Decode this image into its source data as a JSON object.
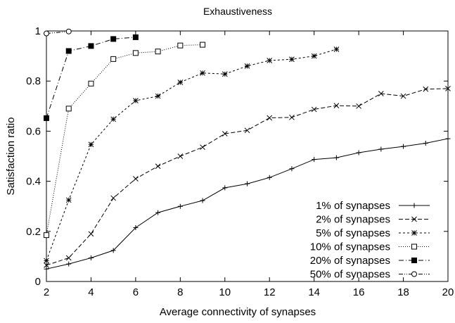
{
  "chart_data": {
    "type": "line",
    "title": "Exhaustiveness",
    "xlabel": "Average connectivity of synapses",
    "ylabel": "Satisfaction ratio",
    "xlim": [
      2,
      20
    ],
    "ylim": [
      0,
      1
    ],
    "x_ticks": [
      2,
      4,
      6,
      8,
      10,
      12,
      14,
      16,
      18,
      20
    ],
    "x_tick_labels": [
      "2",
      "4",
      "6",
      "8",
      "10",
      "12",
      "14",
      "16",
      "18",
      "20"
    ],
    "y_ticks": [
      0,
      0.2,
      0.4,
      0.6,
      0.8,
      1
    ],
    "y_tick_labels": [
      "0",
      "0.2",
      "0.4",
      "0.6",
      "0.8",
      "1"
    ],
    "grid": false,
    "legend_position": "bottom-right",
    "series": [
      {
        "name": "1% of synapses",
        "dash": "solid",
        "marker": "plus",
        "x": [
          2,
          3,
          4,
          5,
          6,
          7,
          8,
          9,
          10,
          11,
          12,
          13,
          14,
          15,
          16,
          17,
          18,
          19,
          20
        ],
        "values": [
          0.05,
          0.07,
          0.094,
          0.124,
          0.215,
          0.275,
          0.3,
          0.323,
          0.374,
          0.39,
          0.415,
          0.45,
          0.487,
          0.494,
          0.514,
          0.528,
          0.539,
          0.552,
          0.57
        ]
      },
      {
        "name": "2% of synapses",
        "dash": "dashed",
        "marker": "cross",
        "x": [
          2,
          3,
          4,
          5,
          6,
          7,
          8,
          9,
          10,
          11,
          12,
          13,
          14,
          15,
          16,
          17,
          18,
          19,
          20
        ],
        "values": [
          0.065,
          0.094,
          0.19,
          0.333,
          0.41,
          0.46,
          0.5,
          0.536,
          0.59,
          0.603,
          0.653,
          0.655,
          0.687,
          0.702,
          0.7,
          0.75,
          0.74,
          0.768,
          0.77
        ]
      },
      {
        "name": "5% of synapses",
        "dash": "short-dashed",
        "marker": "star",
        "x": [
          2,
          3,
          4,
          5,
          6,
          7,
          8,
          9,
          10,
          11,
          12,
          13,
          14,
          15
        ],
        "values": [
          0.083,
          0.325,
          0.547,
          0.648,
          0.722,
          0.74,
          0.795,
          0.832,
          0.828,
          0.86,
          0.882,
          0.887,
          0.9,
          0.927
        ]
      },
      {
        "name": "10% of synapses",
        "dash": "dotted",
        "marker": "open-square",
        "x": [
          2,
          3,
          4,
          5,
          6,
          7,
          8,
          9
        ],
        "values": [
          0.185,
          0.69,
          0.79,
          0.888,
          0.912,
          0.918,
          0.942,
          0.945
        ]
      },
      {
        "name": "20% of synapses",
        "dash": "dash-dot",
        "marker": "filled-square",
        "x": [
          2,
          3,
          4,
          5,
          6
        ],
        "values": [
          0.652,
          0.92,
          0.94,
          0.968,
          0.975
        ]
      },
      {
        "name": "50% of synapses",
        "dash": "dash-dot-dot",
        "marker": "open-circle",
        "x": [
          2,
          3
        ],
        "values": [
          0.99,
          0.998
        ]
      }
    ]
  }
}
